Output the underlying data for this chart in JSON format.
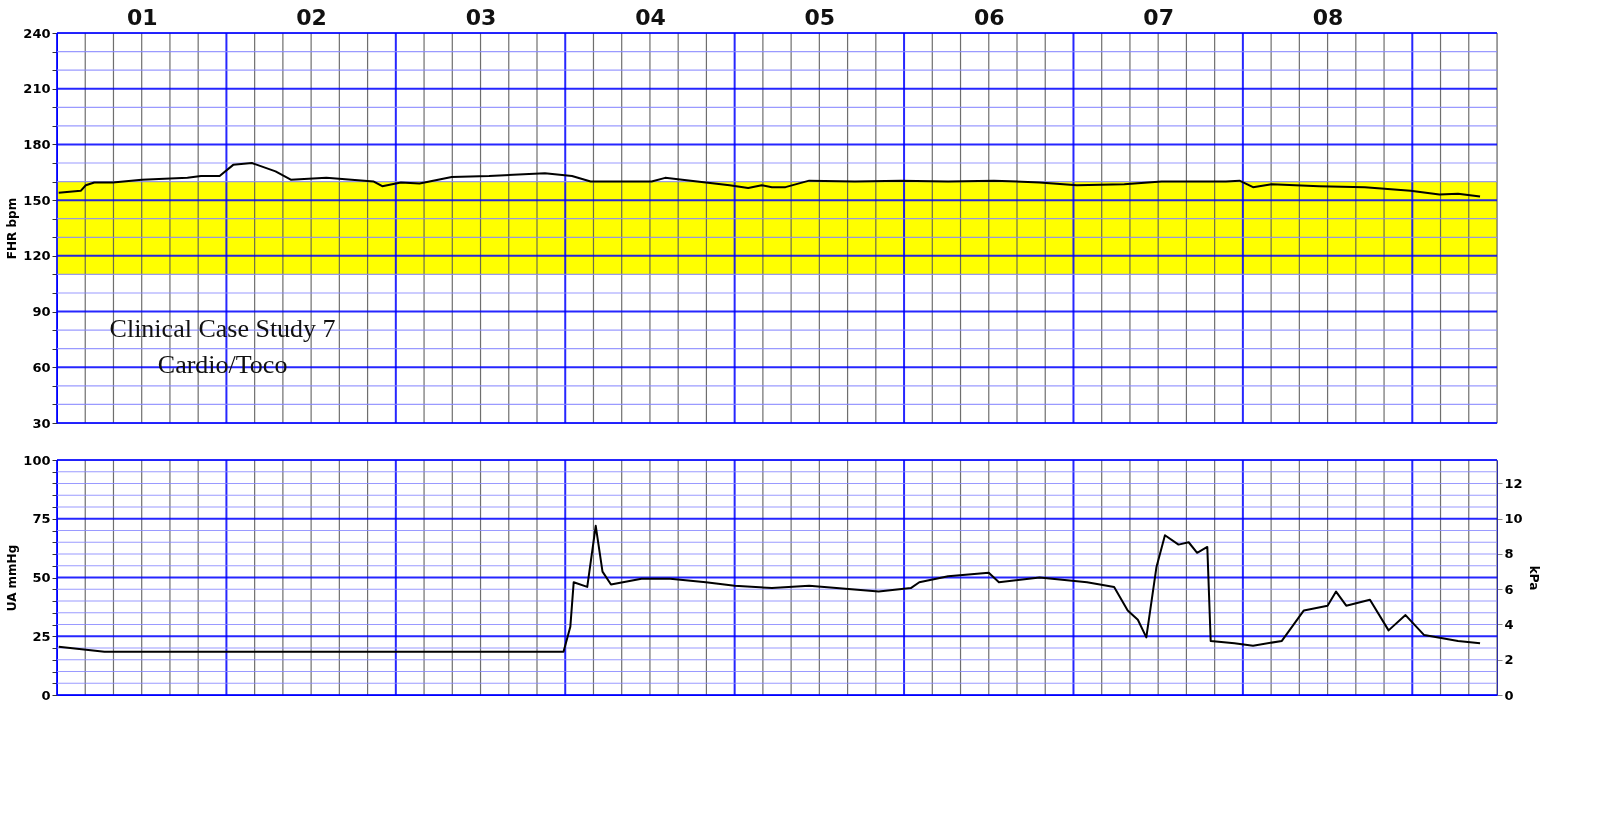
{
  "chart_data": [
    {
      "type": "line",
      "ylabel": "FHR bpm",
      "xlim": [
        0,
        8.5
      ],
      "ylim": [
        30,
        240
      ],
      "xticks": [
        {
          "value": 0.5,
          "label": "01"
        },
        {
          "value": 1.5,
          "label": "02"
        },
        {
          "value": 2.5,
          "label": "03"
        },
        {
          "value": 3.5,
          "label": "04"
        },
        {
          "value": 4.5,
          "label": "05"
        },
        {
          "value": 5.5,
          "label": "06"
        },
        {
          "value": 6.5,
          "label": "07"
        },
        {
          "value": 7.5,
          "label": "08"
        }
      ],
      "yticks": [
        30,
        {
          "value": 40,
          "label": null
        },
        {
          "value": 50,
          "label": null
        },
        60,
        {
          "value": 70,
          "label": null
        },
        {
          "value": 80,
          "label": null
        },
        90,
        {
          "value": 100,
          "label": null
        },
        {
          "value": 110,
          "label": null
        },
        120,
        {
          "value": 130,
          "label": null
        },
        {
          "value": 140,
          "label": null
        },
        150,
        {
          "value": 160,
          "label": null
        },
        {
          "value": 170,
          "label": null
        },
        180,
        {
          "value": 190,
          "label": null
        },
        {
          "value": 200,
          "label": null
        },
        210,
        {
          "value": 220,
          "label": null
        },
        {
          "value": 230,
          "label": null
        },
        240
      ],
      "grid": true,
      "bands": [
        {
          "axis": "y",
          "from": 110,
          "to": 160,
          "color": "#ffff00"
        }
      ],
      "annotations": [
        "Clinical Case Study 7",
        "Cardio/Toco"
      ],
      "series": [
        {
          "color": "#000000",
          "x": [
            0.01,
            0.14,
            0.17,
            0.22,
            0.33,
            0.5,
            0.77,
            0.85,
            0.96,
            1.04,
            1.15,
            1.29,
            1.38,
            1.59,
            1.87,
            1.92,
            2.03,
            2.14,
            2.33,
            2.55,
            2.88,
            3.04,
            3.15,
            3.51,
            3.59,
            3.83,
            3.97,
            4.08,
            4.16,
            4.22,
            4.3,
            4.44,
            4.71,
            4.98,
            5.26,
            5.53,
            5.8,
            6.02,
            6.3,
            6.52,
            6.9,
            6.98,
            7.06,
            7.17,
            7.45,
            7.72,
            7.99,
            8.16,
            8.27,
            8.4
          ],
          "values": [
            154,
            155,
            158,
            159.5,
            159.5,
            161,
            162,
            163,
            163,
            169,
            170,
            165.5,
            161,
            162,
            160,
            157.5,
            159.5,
            159,
            162.5,
            163,
            164.5,
            163,
            160,
            160,
            162,
            159.5,
            158,
            156.5,
            158,
            157,
            157,
            160.5,
            160,
            160.5,
            160,
            160.5,
            159.5,
            158,
            158.5,
            160,
            160,
            160.5,
            157,
            158.5,
            157.5,
            157,
            155,
            153,
            153.5,
            152
          ]
        }
      ]
    },
    {
      "type": "line",
      "ylabel": "UA mmHg",
      "y2label": "kPa",
      "xlim": [
        0,
        8.5
      ],
      "ylim": [
        0,
        100
      ],
      "yticks": [
        0,
        {
          "value": 5,
          "label": null
        },
        {
          "value": 10,
          "label": null
        },
        {
          "value": 15,
          "label": null
        },
        {
          "value": 20,
          "label": null
        },
        25,
        {
          "value": 30,
          "label": null
        },
        {
          "value": 35,
          "label": null
        },
        {
          "value": 40,
          "label": null
        },
        {
          "value": 45,
          "label": null
        },
        50,
        {
          "value": 55,
          "label": null
        },
        {
          "value": 60,
          "label": null
        },
        {
          "value": 65,
          "label": null
        },
        {
          "value": 70,
          "label": null
        },
        75,
        {
          "value": 80,
          "label": null
        },
        {
          "value": 85,
          "label": null
        },
        {
          "value": 90,
          "label": null
        },
        {
          "value": 95,
          "label": null
        },
        100
      ],
      "y2lim": [
        0,
        13.33
      ],
      "y2ticks": [
        0,
        2,
        4,
        6,
        8,
        10,
        12
      ],
      "tick_labels": "y",
      "grid": true,
      "series": [
        {
          "color": "#000000",
          "x": [
            0.01,
            0.28,
            2.99,
            3.03,
            3.05,
            3.13,
            3.18,
            3.22,
            3.27,
            3.45,
            3.62,
            3.83,
            4.0,
            4.22,
            4.44,
            4.85,
            5.04,
            5.09,
            5.26,
            5.5,
            5.56,
            5.8,
            6.08,
            6.24,
            6.32,
            6.38,
            6.43,
            6.49,
            6.54,
            6.62,
            6.68,
            6.73,
            6.79,
            6.81,
            6.95,
            7.06,
            7.23,
            7.36,
            7.5,
            7.55,
            7.61,
            7.75,
            7.86,
            7.96,
            8.07,
            8.27,
            8.4
          ],
          "values": [
            20.5,
            18.4,
            18.4,
            29,
            48,
            46,
            72,
            52.5,
            47,
            49.5,
            49.5,
            48,
            46.5,
            45.5,
            46.5,
            44,
            45.5,
            48,
            50.5,
            52,
            48,
            50,
            48,
            46,
            36,
            32,
            24.5,
            54.5,
            68,
            64,
            65,
            60.5,
            63,
            23,
            22,
            21,
            23,
            36,
            38,
            44,
            38,
            40.5,
            27.5,
            34,
            25.5,
            23,
            22
          ]
        }
      ]
    }
  ]
}
